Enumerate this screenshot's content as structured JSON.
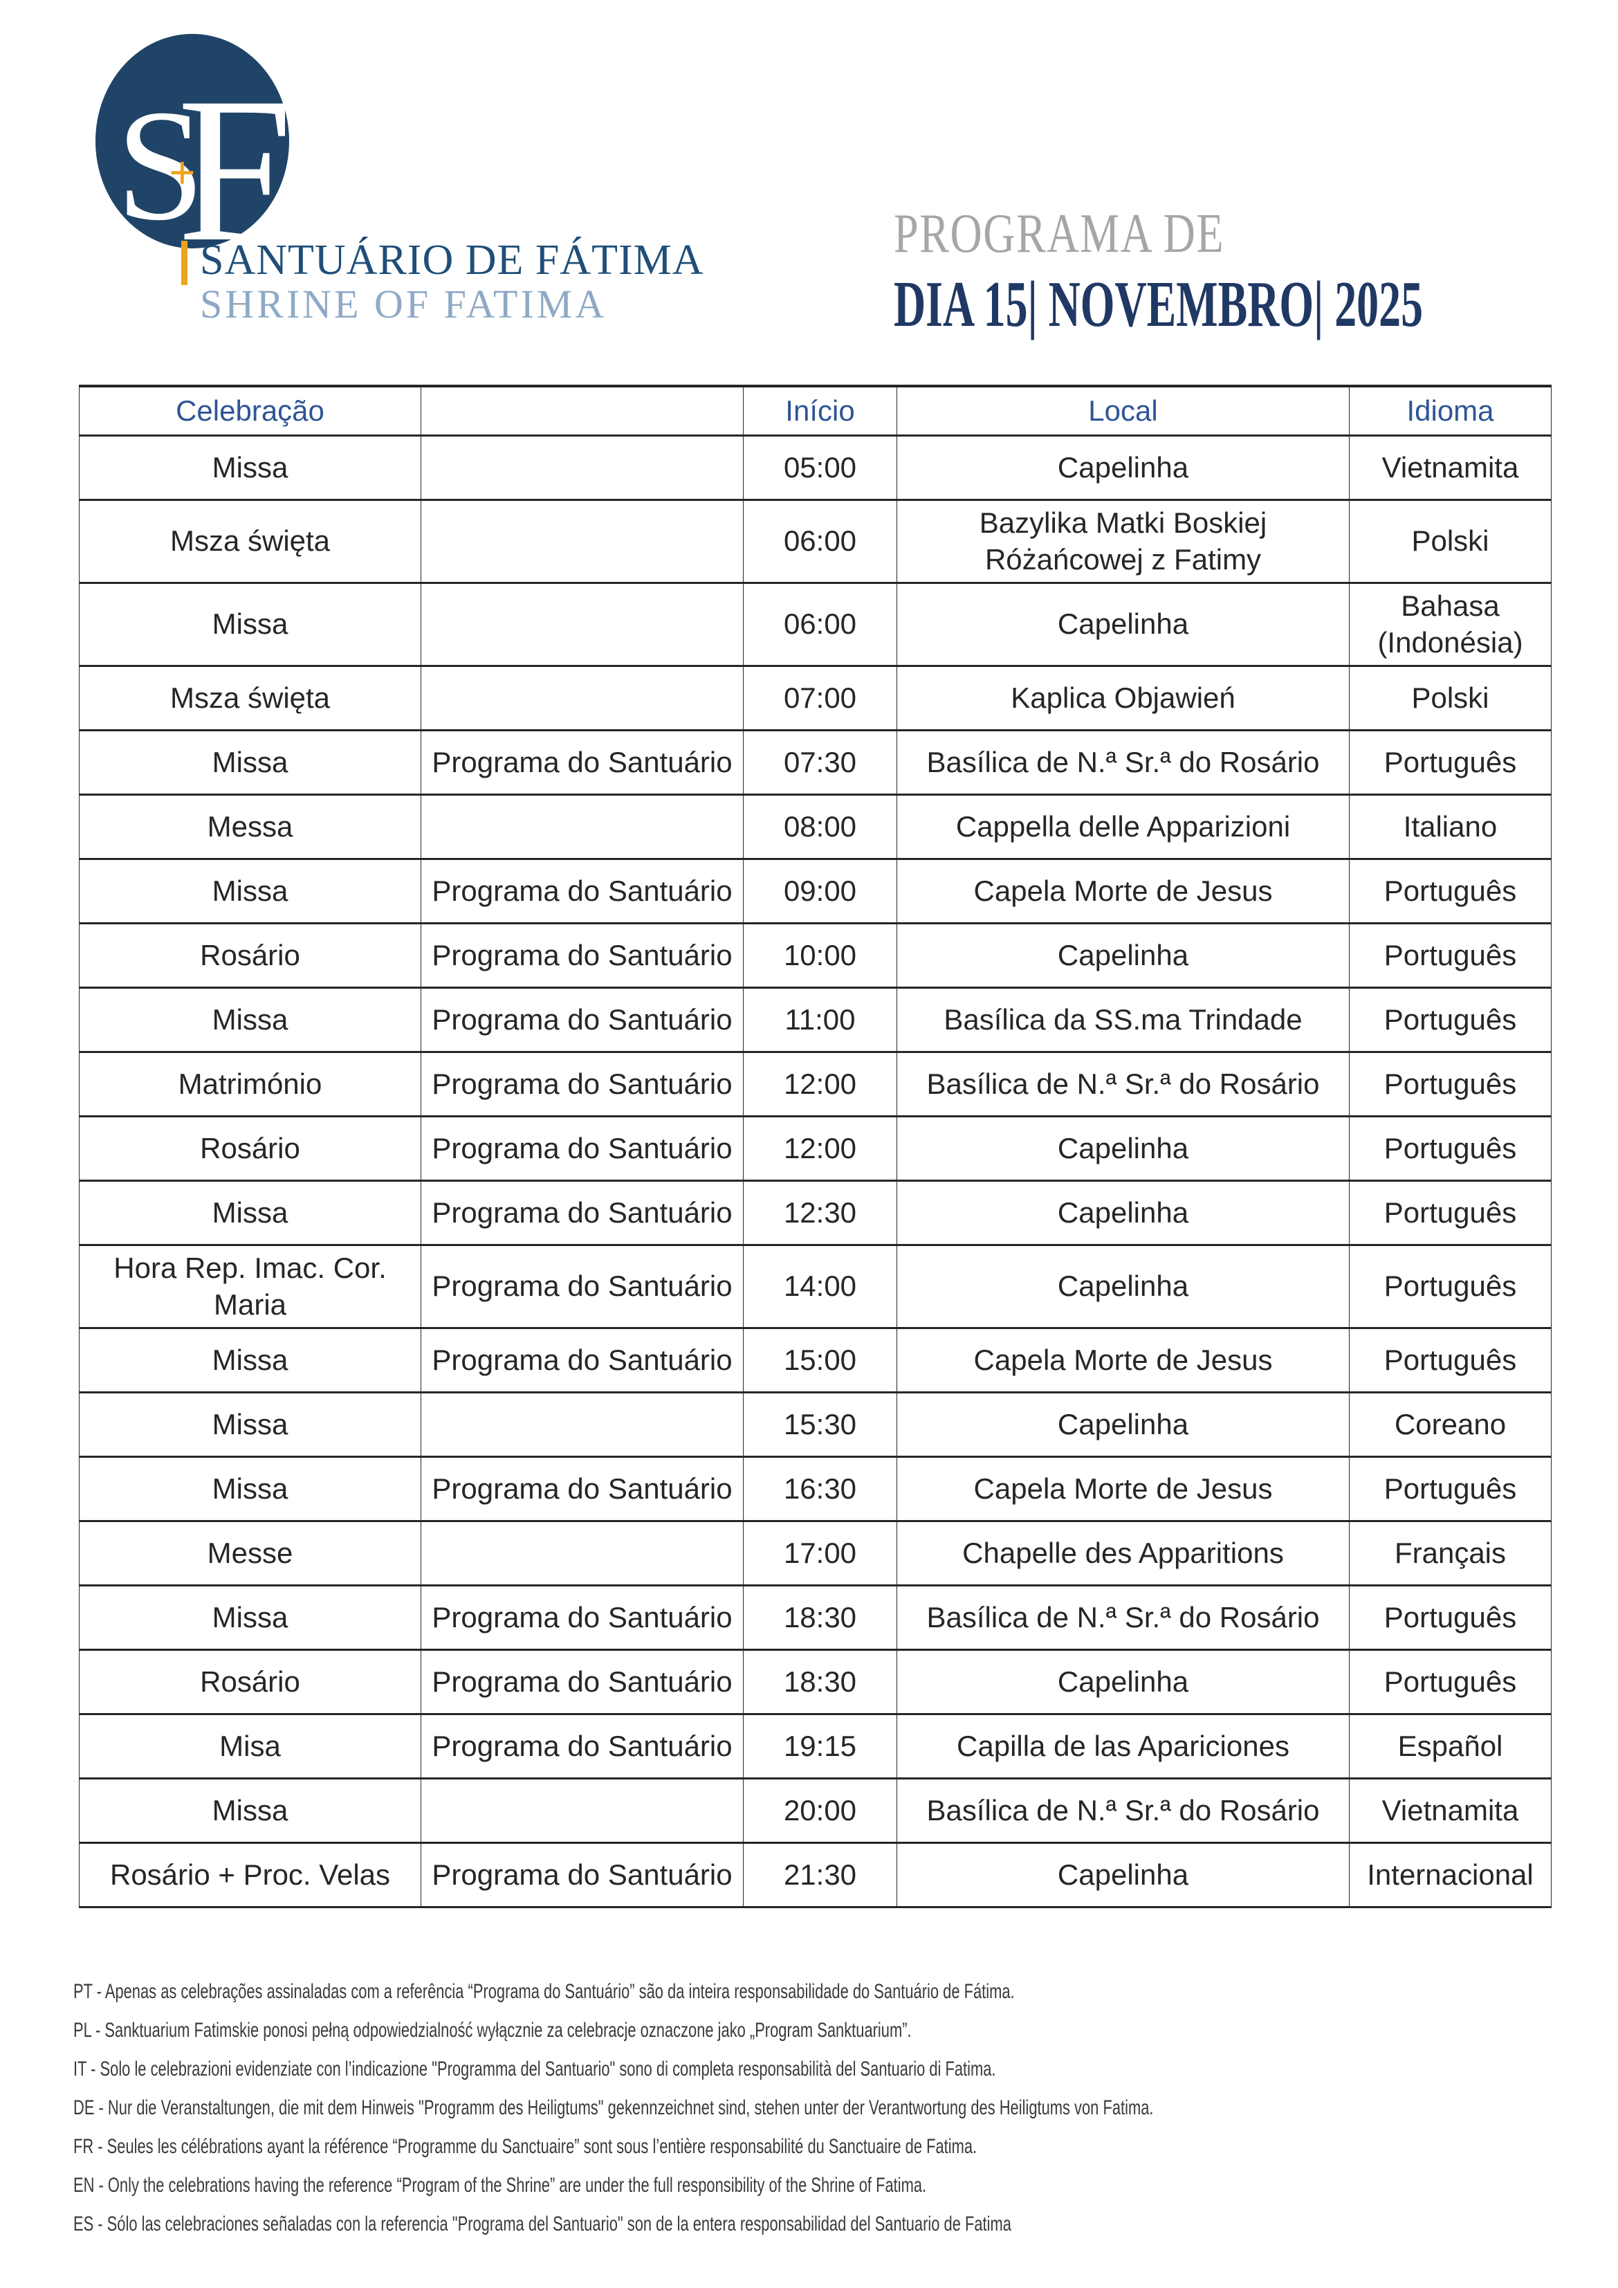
{
  "logo": {
    "monogram_s": "S",
    "monogram_f": "F",
    "monogram_plus": "+",
    "line1": "SANTUÁRIO DE FÁTIMA",
    "line2": "SHRINE OF FATIMA"
  },
  "title": {
    "line1": "PROGRAMA DE",
    "line2": "DIA 15| NOVEMBRO| 2025"
  },
  "table": {
    "headers": [
      "Celebração",
      "",
      "Início",
      "Local",
      "Idioma"
    ],
    "rows": [
      {
        "celebracao": "Missa",
        "programa": "",
        "inicio": "05:00",
        "local": "Capelinha",
        "idioma": "Vietnamita"
      },
      {
        "celebracao": "Msza święta",
        "programa": "",
        "inicio": "06:00",
        "local": "Bazylika Matki Boskiej Różańcowej z Fatimy",
        "idioma": "Polski"
      },
      {
        "celebracao": "Missa",
        "programa": "",
        "inicio": "06:00",
        "local": "Capelinha",
        "idioma": "Bahasa (Indonésia)"
      },
      {
        "celebracao": "Msza święta",
        "programa": "",
        "inicio": "07:00",
        "local": "Kaplica Objawień",
        "idioma": "Polski"
      },
      {
        "celebracao": "Missa",
        "programa": "Programa do Santuário",
        "inicio": "07:30",
        "local": "Basílica de N.ª Sr.ª do Rosário",
        "idioma": "Português"
      },
      {
        "celebracao": "Messa",
        "programa": "",
        "inicio": "08:00",
        "local": "Cappella delle Apparizioni",
        "idioma": "Italiano"
      },
      {
        "celebracao": "Missa",
        "programa": "Programa do Santuário",
        "inicio": "09:00",
        "local": "Capela Morte de Jesus",
        "idioma": "Português"
      },
      {
        "celebracao": "Rosário",
        "programa": "Programa do Santuário",
        "inicio": "10:00",
        "local": "Capelinha",
        "idioma": "Português"
      },
      {
        "celebracao": "Missa",
        "programa": "Programa do Santuário",
        "inicio": "11:00",
        "local": "Basílica da SS.ma Trindade",
        "idioma": "Português"
      },
      {
        "celebracao": "Matrimónio",
        "programa": "Programa do Santuário",
        "inicio": "12:00",
        "local": "Basílica de N.ª Sr.ª do Rosário",
        "idioma": "Português"
      },
      {
        "celebracao": "Rosário",
        "programa": "Programa do Santuário",
        "inicio": "12:00",
        "local": "Capelinha",
        "idioma": "Português"
      },
      {
        "celebracao": "Missa",
        "programa": "Programa do Santuário",
        "inicio": "12:30",
        "local": "Capelinha",
        "idioma": "Português"
      },
      {
        "celebracao": "Hora Rep. Imac. Cor. Maria",
        "programa": "Programa do Santuário",
        "inicio": "14:00",
        "local": "Capelinha",
        "idioma": "Português"
      },
      {
        "celebracao": "Missa",
        "programa": "Programa do Santuário",
        "inicio": "15:00",
        "local": "Capela Morte de Jesus",
        "idioma": "Português"
      },
      {
        "celebracao": "Missa",
        "programa": "",
        "inicio": "15:30",
        "local": "Capelinha",
        "idioma": "Coreano"
      },
      {
        "celebracao": "Missa",
        "programa": "Programa do Santuário",
        "inicio": "16:30",
        "local": "Capela Morte de Jesus",
        "idioma": "Português"
      },
      {
        "celebracao": "Messe",
        "programa": "",
        "inicio": "17:00",
        "local": "Chapelle des Apparitions",
        "idioma": "Français"
      },
      {
        "celebracao": "Missa",
        "programa": "Programa do Santuário",
        "inicio": "18:30",
        "local": "Basílica de N.ª Sr.ª do Rosário",
        "idioma": "Português"
      },
      {
        "celebracao": "Rosário",
        "programa": "Programa do Santuário",
        "inicio": "18:30",
        "local": "Capelinha",
        "idioma": "Português"
      },
      {
        "celebracao": "Misa",
        "programa": "Programa do Santuário",
        "inicio": "19:15",
        "local": "Capilla de las Apariciones",
        "idioma": "Español"
      },
      {
        "celebracao": "Missa",
        "programa": "",
        "inicio": "20:00",
        "local": "Basílica de N.ª Sr.ª do Rosário",
        "idioma": "Vietnamita"
      },
      {
        "celebracao": "Rosário + Proc. Velas",
        "programa": "Programa do Santuário",
        "inicio": "21:30",
        "local": "Capelinha",
        "idioma": "Internacional"
      }
    ]
  },
  "footnotes": [
    "PT - Apenas as celebrações assinaladas com a referência “Programa do Santuário” são da inteira responsabilidade do Santuário de Fátima.",
    "PL - Sanktuarium Fatimskie ponosi pełną odpowiedzialność wyłącznie za celebracje oznaczone jako „Program Sanktuarium”.",
    "IT - Solo le celebrazioni evidenziate con l’indicazione \"Programma del Santuario\" sono di completa responsabilità del Santuario di Fatima.",
    "DE - Nur die Veranstaltungen, die mit dem Hinweis \"Programm des Heiligtums\" gekennzeichnet sind, stehen unter der Verantwortung des Heiligtums von Fatima.",
    "FR - Seules les célébrations ayant la référence “Programme du Sanctuaire” sont sous l’entière responsabilité du Sanctuaire de Fatima.",
    "EN - Only the celebrations having the reference “Program of the Shrine” are under the full responsibility of the Shrine of Fatima.",
    "ES - Sólo las celebraciones señaladas con la referencia \"Programa del Santuario\" son de la entera responsabilidad del Santuario de Fatima"
  ],
  "colors": {
    "logo_navy": "#1F4467",
    "wordmark_blue": "#1F4E79",
    "wordmark_light_blue": "#8EA9C6",
    "accent_gold": "#EFA31D",
    "title_gray": "#A6A6A6",
    "title_navy": "#203864",
    "table_header_blue": "#2F5496",
    "body_text": "#262626"
  }
}
